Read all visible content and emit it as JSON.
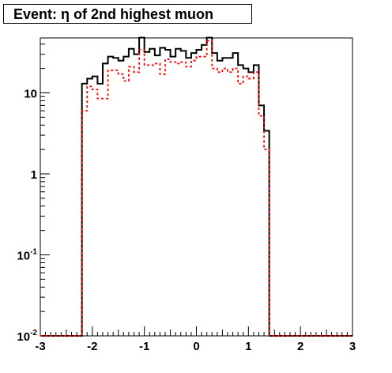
{
  "chart_data": {
    "type": "histogram",
    "title": "Event: η of 2nd highest muon",
    "xlabel": "",
    "ylabel": "",
    "xlim": [
      -3,
      3
    ],
    "ylim": [
      0.01,
      50
    ],
    "ylog": true,
    "grid": false,
    "bin_width": 0.1,
    "x_ticks": [
      -3,
      -2,
      -1,
      0,
      1,
      2,
      3
    ],
    "y_ticks": [
      {
        "value": 0.01,
        "label_base": "10",
        "label_exp": "-2"
      },
      {
        "value": 0.1,
        "label_base": "10",
        "label_exp": "-1"
      },
      {
        "value": 1,
        "label_base": "1",
        "label_exp": ""
      },
      {
        "value": 10,
        "label_base": "10",
        "label_exp": ""
      }
    ],
    "series": [
      {
        "color": "#000000",
        "style": "solid",
        "bin_edges_start": -2.2,
        "values": [
          13,
          15,
          16,
          13,
          23,
          28,
          27,
          25,
          28,
          35,
          30,
          48,
          32,
          35,
          29,
          36,
          34,
          28,
          35,
          33,
          27,
          31,
          34,
          39,
          48,
          31,
          25,
          27,
          27,
          31,
          22,
          20,
          18,
          22,
          7,
          3.4
        ]
      },
      {
        "color": "#ff0000",
        "style": "dashed",
        "bin_edges_start": -2.2,
        "values": [
          6,
          12,
          11,
          8.5,
          8.5,
          19,
          19,
          17,
          14,
          21,
          18,
          34,
          22,
          22,
          23,
          17,
          26,
          24,
          23,
          24,
          21,
          25,
          28,
          28,
          44,
          20,
          18,
          20,
          18,
          20,
          13,
          16,
          15,
          18,
          5.2,
          2
        ]
      }
    ]
  }
}
